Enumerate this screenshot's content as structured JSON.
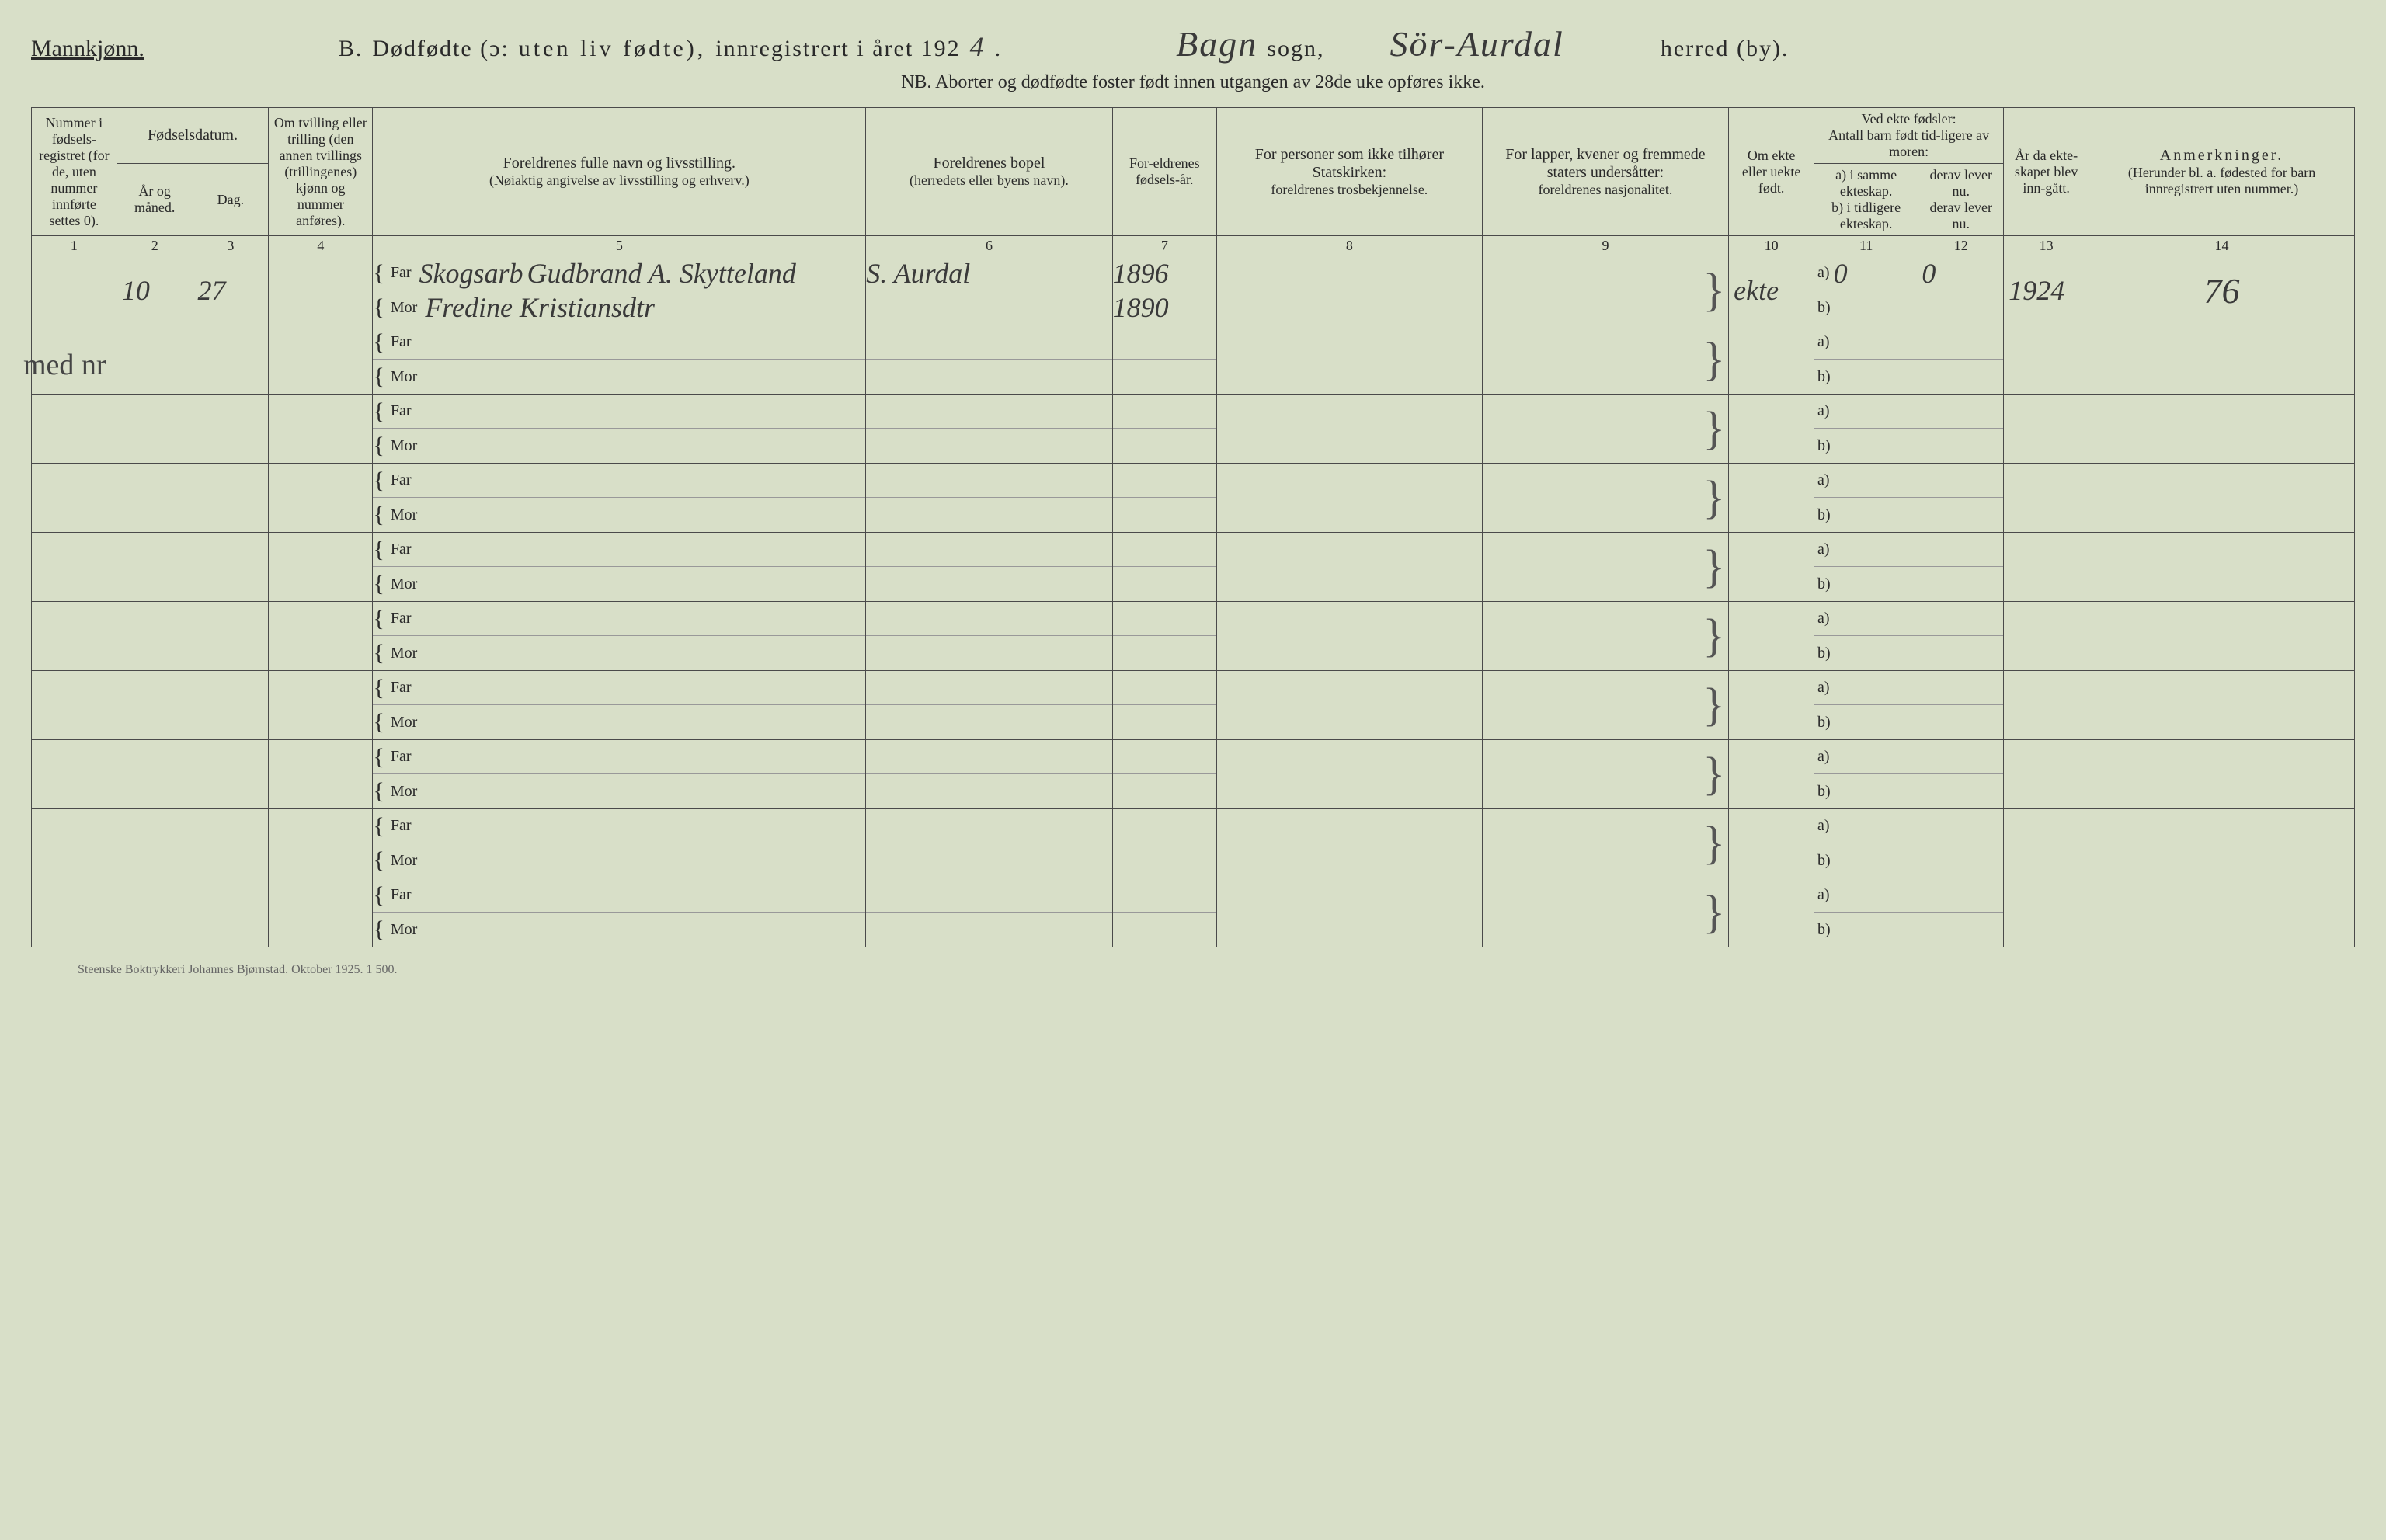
{
  "header": {
    "gender": "Mannkjønn.",
    "section_letter": "B.",
    "title_prefix": "Dødfødte (ɔ:",
    "title_mid": "uten liv fødte),",
    "title_suffix": "innregistrert i året 192",
    "year_hand": "4",
    "sogn_hand": "Bagn",
    "sogn_label": "sogn,",
    "herred_hand": "Sör-Aurdal",
    "herred_label": "herred (by).",
    "nb": "NB.  Aborter og dødfødte foster født innen utgangen av 28de uke opføres ikke."
  },
  "columns": {
    "c1": "Nummer i fødsels-registret (for de, uten nummer innførte settes 0).",
    "c2_top": "Fødselsdatum.",
    "c2a": "År og måned.",
    "c2b": "Dag.",
    "c3": "Om tvilling eller trilling (den annen tvillings (trillingenes) kjønn og nummer anføres).",
    "c4_top": "Foreldrenes fulle navn og livsstilling.",
    "c4_sub": "(Nøiaktig angivelse av livsstilling og erhverv.)",
    "c5_top": "Foreldrenes bopel",
    "c5_sub": "(herredets eller byens navn).",
    "c6": "For-eldrenes fødsels-år.",
    "c7_top": "For personer som ikke tilhører Statskirken:",
    "c7_sub": "foreldrenes trosbekjennelse.",
    "c8_top": "For lapper, kvener og fremmede staters undersåtter:",
    "c8_sub": "foreldrenes nasjonalitet.",
    "c9": "Om ekte eller uekte født.",
    "c10_top": "Ved ekte fødsler:",
    "c10_sub": "Antall barn født tid-ligere av moren:",
    "c10a": "a) i samme ekteskap.",
    "c10b": "b) i tidligere ekteskap.",
    "c11_top": "derav lever nu.",
    "c11a": "derav lever nu.",
    "c12": "År da ekte-skapet blev inn-gått.",
    "c13_top": "Anmerkninger.",
    "c13_sub": "(Herunder bl. a. fødested for barn innregistrert uten nummer.)"
  },
  "colnums": [
    "1",
    "2",
    "3",
    "4",
    "5",
    "6",
    "7",
    "8",
    "9",
    "10",
    "11",
    "12",
    "13",
    "14"
  ],
  "labels": {
    "far": "Far",
    "mor": "Mor",
    "a": "a)",
    "b": "b)"
  },
  "entry": {
    "margin_note": "med nr",
    "month": "10",
    "day": "27",
    "far_occ": "Skogsarb",
    "far_name": "Gudbrand A. Skytteland",
    "mor_name": "Fredine Kristiansdtr",
    "bopel": "S. Aurdal",
    "far_year": "1896",
    "mor_year": "1890",
    "ekte": "ekte",
    "a_val": "0",
    "a_derav": "0",
    "year_married": "1924",
    "anm": "76"
  },
  "footer": "Steenske Boktrykkeri Johannes Bjørnstad.   Oktober 1925.   1 500."
}
